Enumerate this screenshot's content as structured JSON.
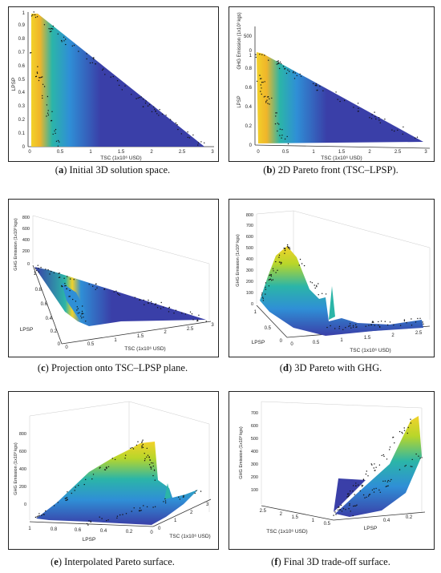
{
  "figure": {
    "panels": [
      {
        "id": "a",
        "letter": "a",
        "caption": "Initial 3D solution space."
      },
      {
        "id": "b",
        "letter": "b",
        "caption": "2D Pareto front (TSC–LPSP)."
      },
      {
        "id": "c",
        "letter": "c",
        "caption": "Projection onto TSC–LPSP plane."
      },
      {
        "id": "d",
        "letter": "d",
        "caption": "3D Pareto with GHG."
      },
      {
        "id": "e",
        "letter": "e",
        "caption": "Interpolated Pareto surface."
      },
      {
        "id": "f",
        "letter": "f",
        "caption": "Final 3D trade-off surface."
      }
    ]
  },
  "axes": {
    "tsc_label": "TSC (1x10⁶ USD)",
    "lpsp_label": "LPSP",
    "ghg_label": "GHG Emission (1x10³ kgs)"
  },
  "colors": {
    "surface_dark": "#3a3fa8",
    "surface_mid": "#2f8fd6",
    "surface_teal": "#2bb5a8",
    "surface_yellow": "#f2d22a",
    "points": "#111111"
  },
  "chart_data": [
    {
      "panel": "a",
      "type": "scatter",
      "xlabel": "TSC (1x10⁶ USD)",
      "ylabel": "LPSP",
      "xticks": [
        "0",
        "0.5",
        "1",
        "1.5",
        "2",
        "2.5",
        "3"
      ],
      "yticks": [
        "0",
        "0.1",
        "0.2",
        "0.3",
        "0.4",
        "0.5",
        "0.6",
        "0.7",
        "0.8",
        "0.9",
        "1"
      ],
      "xlim": [
        0,
        3
      ],
      "ylim": [
        0,
        1
      ]
    },
    {
      "panel": "b",
      "type": "scatter",
      "xlabel": "TSC (1x10⁶ USD)",
      "ylabel": "LPSP",
      "zlabel": "GHG Emission (1x10³ kgs)",
      "xticks": [
        "0",
        "0.5",
        "1",
        "1.5",
        "2",
        "2.5",
        "3"
      ],
      "yticks": [
        "0",
        "0.2",
        "0.4",
        "0.6",
        "0.8",
        "1"
      ],
      "zticks": [
        "0",
        "500"
      ]
    },
    {
      "panel": "c",
      "type": "scatter",
      "xlabel": "TSC (1x10⁶ USD)",
      "ylabel": "LPSP",
      "zlabel": "GHG Emission (1x10³ kgs)",
      "xticks": [
        "0",
        "0.5",
        "1",
        "1.5",
        "2",
        "2.5",
        "3"
      ],
      "yticks": [
        "0",
        "0.2",
        "0.4",
        "0.6",
        "0.8",
        "1"
      ],
      "zticks": [
        "0",
        "200",
        "400",
        "600",
        "800"
      ]
    },
    {
      "panel": "d",
      "type": "scatter",
      "xlabel": "TSC (1x10⁶ USD)",
      "ylabel": "LPSP",
      "zlabel": "GHG Emission (1x10³ kgs)",
      "xticks": [
        "0",
        "0.5",
        "1",
        "1.5",
        "2",
        "2.5"
      ],
      "yticks": [
        "0",
        "0.5",
        "1"
      ],
      "zticks": [
        "0",
        "100",
        "200",
        "300",
        "400",
        "500",
        "600",
        "700",
        "800"
      ]
    },
    {
      "panel": "e",
      "type": "scatter",
      "xlabel": "TSC (1x10⁶ USD)",
      "ylabel": "LPSP",
      "zlabel": "GHG Emission (1x10³ kgs)",
      "xticks": [
        "0",
        "1",
        "2",
        "3"
      ],
      "yticks": [
        "1",
        "0.8",
        "0.6",
        "0.4",
        "0.2",
        "0"
      ],
      "zticks": [
        "0",
        "200",
        "400",
        "600",
        "800"
      ]
    },
    {
      "panel": "f",
      "type": "scatter",
      "xlabel": "TSC (1x10⁶ USD)",
      "ylabel": "LPSP",
      "zlabel": "GHG Emission (1x10³ kgs)",
      "xticks": [
        "2.5",
        "2",
        "1.5",
        "1",
        "0.5"
      ],
      "yticks": [
        "0.4",
        "0.2"
      ],
      "zticks": [
        "100",
        "200",
        "300",
        "400",
        "500",
        "600",
        "700"
      ]
    }
  ]
}
